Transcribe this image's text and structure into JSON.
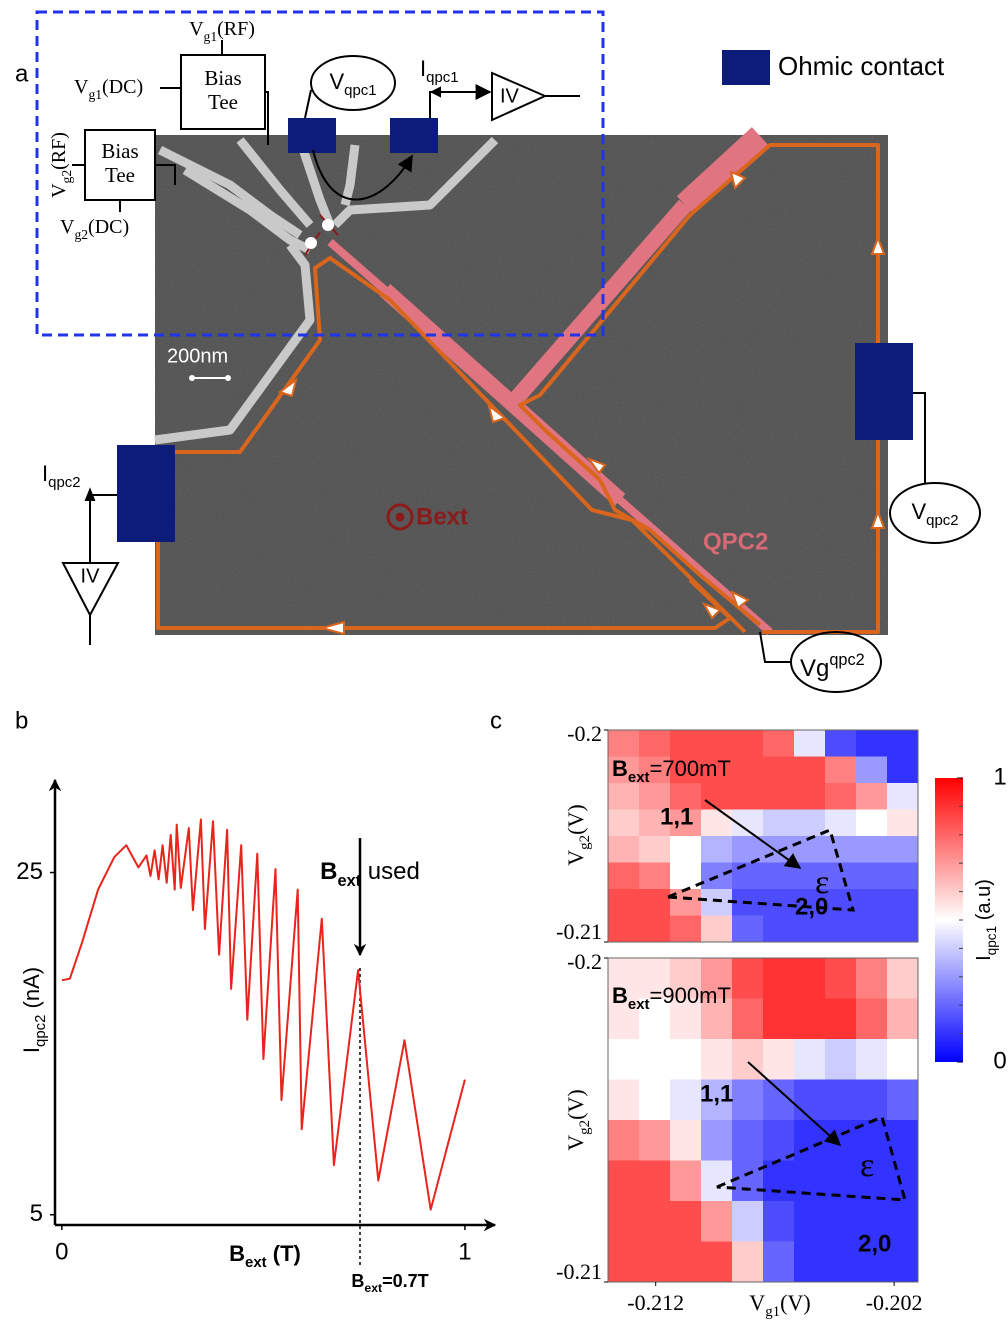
{
  "figure": {
    "panel_labels": [
      "a",
      "b",
      "c"
    ],
    "diagram": {
      "legend": "Ohmic contact",
      "scale_bar": "200nm",
      "vg1_rf": [
        "V",
        "g1",
        "(RF)"
      ],
      "vg1_dc": [
        "V",
        "g1",
        "(DC)"
      ],
      "vg2_rf": [
        "V",
        "g2",
        "(RF)"
      ],
      "vg2_dc": [
        "V",
        "g2",
        "(DC)"
      ],
      "bias_tee_1": [
        "Bias",
        "Tee"
      ],
      "bias_tee_2": [
        "Bias",
        "Tee"
      ],
      "vqpc1": [
        "V",
        "qpc1"
      ],
      "iqpc1": [
        "I",
        "qpc1"
      ],
      "iv_1": "IV",
      "iv_2": "IV",
      "iqpc2": [
        "I",
        "qpc2"
      ],
      "vqpc2": [
        "V",
        "qpc2"
      ],
      "vg_qpc2": [
        "Vg",
        "qpc2"
      ],
      "bext": "Bext",
      "qpc2": "QPC2"
    }
  },
  "chart_data": [
    {
      "type": "line",
      "xlabel": [
        "B",
        "ext",
        " (T)"
      ],
      "ylabel": [
        "I",
        "qpc2",
        " (nA)"
      ],
      "x": [
        0,
        0.02,
        0.05,
        0.09,
        0.13,
        0.16,
        0.19,
        0.21,
        0.22,
        0.23,
        0.24,
        0.25,
        0.26,
        0.27,
        0.28,
        0.285,
        0.295,
        0.315,
        0.325,
        0.345,
        0.355,
        0.375,
        0.39,
        0.41,
        0.42,
        0.445,
        0.46,
        0.485,
        0.5,
        0.53,
        0.545,
        0.585,
        0.595,
        0.645,
        0.675,
        0.735,
        0.785,
        0.85,
        0.915,
        1.0
      ],
      "values": [
        18.7,
        18.8,
        20.9,
        24.0,
        25.9,
        26.6,
        25.3,
        26.0,
        24.8,
        26.3,
        24.6,
        26.6,
        24.4,
        27.2,
        24.0,
        27.8,
        24.1,
        27.6,
        22.8,
        28.1,
        21.7,
        28.0,
        20.2,
        27.5,
        18.2,
        26.6,
        16.4,
        26.1,
        14.1,
        25.2,
        11.7,
        24.0,
        10.0,
        22.3,
        7.9,
        19.3,
        7.0,
        15.2,
        5.3,
        12.9
      ],
      "color": "#e8241c",
      "xlim": [
        -0.017,
        1.087
      ],
      "xticks": [
        0,
        1
      ],
      "ylim": [
        4.4,
        30.7
      ],
      "yticks": [
        5,
        25
      ],
      "annotations": [
        [
          "B",
          "ext",
          " used"
        ],
        [
          "B",
          "ext",
          "=0.7T"
        ]
      ]
    },
    {
      "type": "heatmap",
      "annotation": [
        "B",
        "ext",
        "=700mT"
      ],
      "labels": [
        "1,1",
        "ε",
        "2,0"
      ],
      "ylabel": [
        "V",
        "g2",
        "(V)"
      ],
      "xlim": [
        -0.214,
        -0.201
      ],
      "ylim": [
        -0.21,
        -0.2
      ],
      "yticks": [
        -0.2,
        -0.21
      ],
      "zlim": [
        0,
        1
      ],
      "zticks": [
        1,
        0
      ],
      "colors": [
        "#0000ff",
        "#ffffff",
        "#ff0000"
      ],
      "colorbar_label": [
        "I",
        "qpc1",
        " (a.u)"
      ],
      "z": [
        [
          0.75,
          0.8,
          0.85,
          0.85,
          0.85,
          0.8,
          0.45,
          0.15,
          0.1,
          0.1
        ],
        [
          0.7,
          0.75,
          0.85,
          0.85,
          0.85,
          0.85,
          0.85,
          0.75,
          0.3,
          0.1
        ],
        [
          0.65,
          0.7,
          0.8,
          0.85,
          0.85,
          0.85,
          0.85,
          0.8,
          0.7,
          0.45
        ],
        [
          0.6,
          0.65,
          0.7,
          0.55,
          0.45,
          0.4,
          0.4,
          0.45,
          0.5,
          0.55
        ],
        [
          0.65,
          0.6,
          0.5,
          0.35,
          0.3,
          0.3,
          0.3,
          0.3,
          0.3,
          0.3
        ],
        [
          0.8,
          0.75,
          0.5,
          0.25,
          0.2,
          0.2,
          0.2,
          0.2,
          0.2,
          0.2
        ],
        [
          0.85,
          0.85,
          0.7,
          0.4,
          0.15,
          0.15,
          0.15,
          0.15,
          0.15,
          0.15
        ],
        [
          0.85,
          0.85,
          0.8,
          0.6,
          0.2,
          0.15,
          0.15,
          0.15,
          0.15,
          0.15
        ]
      ]
    },
    {
      "type": "heatmap",
      "annotation": [
        "B",
        "ext",
        "=900mT"
      ],
      "labels": [
        "1,1",
        "ε",
        "2,0"
      ],
      "ylabel": [
        "V",
        "g2",
        "(V)"
      ],
      "xlabel": [
        "V",
        "g1",
        "(V)"
      ],
      "xlim": [
        -0.214,
        -0.201
      ],
      "xticks": [
        -0.212,
        -0.202
      ],
      "ylim": [
        -0.21,
        -0.2
      ],
      "yticks": [
        -0.2,
        -0.21
      ],
      "z": [
        [
          0.55,
          0.55,
          0.6,
          0.7,
          0.85,
          0.9,
          0.9,
          0.85,
          0.75,
          0.6
        ],
        [
          0.55,
          0.5,
          0.55,
          0.65,
          0.8,
          0.9,
          0.9,
          0.9,
          0.8,
          0.65
        ],
        [
          0.5,
          0.5,
          0.5,
          0.55,
          0.6,
          0.55,
          0.45,
          0.4,
          0.45,
          0.5
        ],
        [
          0.55,
          0.5,
          0.45,
          0.35,
          0.25,
          0.2,
          0.15,
          0.15,
          0.15,
          0.2
        ],
        [
          0.75,
          0.7,
          0.55,
          0.3,
          0.2,
          0.15,
          0.1,
          0.1,
          0.1,
          0.1
        ],
        [
          0.85,
          0.85,
          0.7,
          0.45,
          0.2,
          0.1,
          0.1,
          0.1,
          0.1,
          0.1
        ],
        [
          0.85,
          0.85,
          0.85,
          0.7,
          0.4,
          0.15,
          0.1,
          0.1,
          0.1,
          0.1
        ],
        [
          0.85,
          0.85,
          0.85,
          0.85,
          0.6,
          0.2,
          0.1,
          0.1,
          0.1,
          0.1
        ]
      ]
    }
  ]
}
